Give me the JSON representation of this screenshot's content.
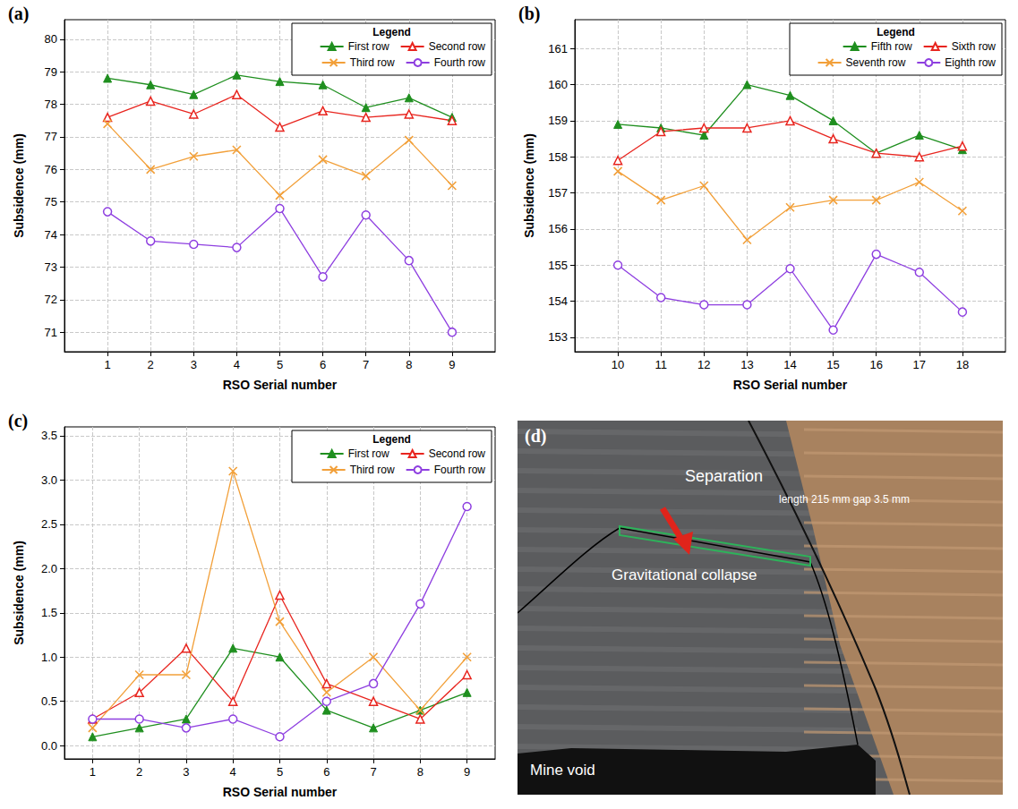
{
  "chart_data": [
    {
      "type": "line",
      "title": "(a)",
      "x_label": "RSO Serial number",
      "y_label": "Subsidence (mm)",
      "legend_title": "Legend",
      "legend": "upper right",
      "grid": true,
      "x": [
        1,
        2,
        3,
        4,
        5,
        6,
        7,
        8,
        9
      ],
      "xlim": [
        0,
        10
      ],
      "xticks": [
        1,
        2,
        3,
        4,
        5,
        6,
        7,
        8,
        9
      ],
      "ylim": [
        70.4,
        80.6
      ],
      "yticks": [
        71,
        72,
        73,
        74,
        75,
        76,
        77,
        78,
        79,
        80
      ],
      "series": [
        {
          "name": "First row",
          "color": "#1f8f1f",
          "marker": "triangle-filled",
          "line_style": "solid",
          "values": [
            78.8,
            78.6,
            78.3,
            78.9,
            78.7,
            78.6,
            77.9,
            78.2,
            77.6
          ]
        },
        {
          "name": "Second row",
          "color": "#e8251f",
          "marker": "triangle-open",
          "line_style": "solid",
          "values": [
            77.6,
            78.1,
            77.7,
            78.3,
            77.3,
            77.8,
            77.6,
            77.7,
            77.5
          ]
        },
        {
          "name": "Third row",
          "color": "#f2a03a",
          "marker": "cross",
          "line_style": "solid",
          "values": [
            77.4,
            76.0,
            76.4,
            76.6,
            75.2,
            76.3,
            75.8,
            76.9,
            75.5
          ]
        },
        {
          "name": "Fourth row",
          "color": "#8e3fe0",
          "marker": "circle-open",
          "line_style": "solid",
          "values": [
            74.7,
            73.8,
            73.7,
            73.6,
            74.8,
            72.7,
            74.6,
            73.2,
            71.0
          ]
        }
      ]
    },
    {
      "type": "line",
      "title": "(b)",
      "x_label": "RSO Serial number",
      "y_label": "Subsidence (mm)",
      "legend_title": "Legend",
      "legend": "upper right",
      "grid": true,
      "x": [
        10,
        11,
        12,
        13,
        14,
        15,
        16,
        17,
        18
      ],
      "xlim": [
        9,
        19
      ],
      "xticks": [
        10,
        11,
        12,
        13,
        14,
        15,
        16,
        17,
        18
      ],
      "ylim": [
        152.6,
        161.8
      ],
      "yticks": [
        153,
        154,
        155,
        156,
        157,
        158,
        159,
        160,
        161
      ],
      "series": [
        {
          "name": "Fifth row",
          "color": "#1f8f1f",
          "marker": "triangle-filled",
          "line_style": "solid",
          "values": [
            158.9,
            158.8,
            158.6,
            160.0,
            159.7,
            159.0,
            158.1,
            158.6,
            158.2
          ]
        },
        {
          "name": "Sixth row",
          "color": "#e8251f",
          "marker": "triangle-open",
          "line_style": "solid",
          "values": [
            157.9,
            158.7,
            158.8,
            158.8,
            159.0,
            158.5,
            158.1,
            158.0,
            158.3
          ]
        },
        {
          "name": "Seventh row",
          "color": "#f2a03a",
          "marker": "cross",
          "line_style": "solid",
          "values": [
            157.6,
            156.8,
            157.2,
            155.7,
            156.6,
            156.8,
            156.8,
            157.3,
            156.5
          ]
        },
        {
          "name": "Eighth row",
          "color": "#8e3fe0",
          "marker": "circle-open",
          "line_style": "solid",
          "values": [
            155.0,
            154.1,
            153.9,
            153.9,
            154.9,
            153.2,
            155.3,
            154.8,
            153.7
          ]
        }
      ]
    },
    {
      "type": "line",
      "title": "(c)",
      "x_label": "RSO Serial number",
      "y_label": "Subsidence (mm)",
      "legend_title": "Legend",
      "legend": "upper right",
      "grid": true,
      "x": [
        1,
        2,
        3,
        4,
        5,
        6,
        7,
        8,
        9
      ],
      "xlim": [
        0.4,
        9.6
      ],
      "xticks": [
        1,
        2,
        3,
        4,
        5,
        6,
        7,
        8,
        9
      ],
      "ylim": [
        -0.15,
        3.6
      ],
      "yticks": [
        {
          "value": 0,
          "label": "0.0"
        },
        {
          "value": 0.5,
          "label": "0.5"
        },
        {
          "value": 1,
          "label": "1.0"
        },
        {
          "value": 1.5,
          "label": "1.5"
        },
        {
          "value": 2,
          "label": "2.0"
        },
        {
          "value": 2.5,
          "label": "2.5"
        },
        {
          "value": 3,
          "label": "3.0"
        },
        {
          "value": 3.5,
          "label": "3.5"
        }
      ],
      "series": [
        {
          "name": "First row",
          "color": "#1f8f1f",
          "marker": "triangle-filled",
          "line_style": "solid",
          "values": [
            0.1,
            0.2,
            0.3,
            1.1,
            1.0,
            0.4,
            0.2,
            0.4,
            0.6
          ]
        },
        {
          "name": "Second row",
          "color": "#e8251f",
          "marker": "triangle-open",
          "line_style": "solid",
          "values": [
            0.3,
            0.6,
            1.1,
            0.5,
            1.7,
            0.7,
            0.5,
            0.3,
            0.8
          ]
        },
        {
          "name": "Third row",
          "color": "#f2a03a",
          "marker": "cross",
          "line_style": "solid",
          "values": [
            0.2,
            0.8,
            0.8,
            3.1,
            1.4,
            0.6,
            1.0,
            0.4,
            1.0
          ]
        },
        {
          "name": "Fourth row",
          "color": "#8e3fe0",
          "marker": "circle-open",
          "line_style": "solid",
          "values": [
            0.3,
            0.3,
            0.2,
            0.3,
            0.1,
            0.5,
            0.7,
            1.6,
            2.7
          ]
        }
      ]
    }
  ],
  "photo": {
    "label": "(d)",
    "annotations": {
      "separation": "Separation",
      "dimensions": "length 215 mm  gap 3.5 mm",
      "collapse": "Gravitational collapse",
      "void": "Mine void"
    }
  }
}
